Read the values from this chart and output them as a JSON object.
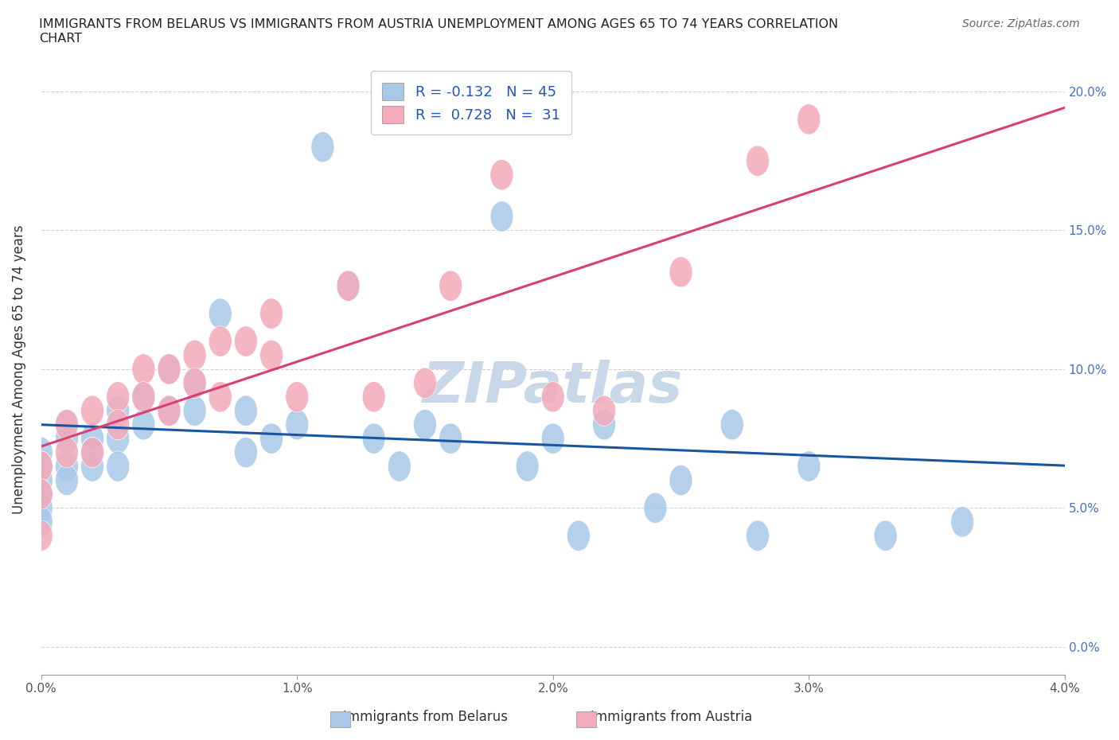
{
  "title": "IMMIGRANTS FROM BELARUS VS IMMIGRANTS FROM AUSTRIA UNEMPLOYMENT AMONG AGES 65 TO 74 YEARS CORRELATION\nCHART",
  "source": "Source: ZipAtlas.com",
  "ylabel": "Unemployment Among Ages 65 to 74 years",
  "legend_label_belarus": "Immigrants from Belarus",
  "legend_label_austria": "Immigrants from Austria",
  "R_belarus": -0.132,
  "N_belarus": 45,
  "R_austria": 0.728,
  "N_austria": 31,
  "color_belarus": "#A8C8E8",
  "color_austria": "#F4AABA",
  "line_color_belarus": "#1A56A0",
  "line_color_austria": "#D84070",
  "x_belarus": [
    0.0,
    0.0,
    0.0,
    0.0,
    0.0,
    0.0,
    0.001,
    0.001,
    0.001,
    0.001,
    0.002,
    0.002,
    0.002,
    0.003,
    0.003,
    0.003,
    0.004,
    0.004,
    0.005,
    0.005,
    0.006,
    0.006,
    0.007,
    0.008,
    0.008,
    0.009,
    0.01,
    0.011,
    0.012,
    0.013,
    0.014,
    0.015,
    0.016,
    0.018,
    0.019,
    0.02,
    0.021,
    0.022,
    0.024,
    0.025,
    0.027,
    0.028,
    0.03,
    0.033,
    0.036
  ],
  "y_belarus": [
    0.07,
    0.065,
    0.06,
    0.055,
    0.05,
    0.045,
    0.08,
    0.075,
    0.065,
    0.06,
    0.075,
    0.07,
    0.065,
    0.085,
    0.075,
    0.065,
    0.09,
    0.08,
    0.1,
    0.085,
    0.095,
    0.085,
    0.12,
    0.085,
    0.07,
    0.075,
    0.08,
    0.18,
    0.13,
    0.075,
    0.065,
    0.08,
    0.075,
    0.155,
    0.065,
    0.075,
    0.04,
    0.08,
    0.05,
    0.06,
    0.08,
    0.04,
    0.065,
    0.04,
    0.045
  ],
  "x_austria": [
    0.0,
    0.0,
    0.0,
    0.001,
    0.001,
    0.002,
    0.002,
    0.003,
    0.003,
    0.004,
    0.004,
    0.005,
    0.005,
    0.006,
    0.006,
    0.007,
    0.007,
    0.008,
    0.009,
    0.009,
    0.01,
    0.012,
    0.013,
    0.015,
    0.016,
    0.018,
    0.02,
    0.022,
    0.025,
    0.028,
    0.03
  ],
  "y_austria": [
    0.065,
    0.055,
    0.04,
    0.08,
    0.07,
    0.085,
    0.07,
    0.09,
    0.08,
    0.1,
    0.09,
    0.1,
    0.085,
    0.105,
    0.095,
    0.11,
    0.09,
    0.11,
    0.12,
    0.105,
    0.09,
    0.13,
    0.09,
    0.095,
    0.13,
    0.17,
    0.09,
    0.085,
    0.135,
    0.175,
    0.19
  ],
  "xlim": [
    0.0,
    0.04
  ],
  "ylim": [
    -0.01,
    0.21
  ],
  "xticks": [
    0.0,
    0.01,
    0.02,
    0.03,
    0.04
  ],
  "yticks_right": [
    0.0,
    0.05,
    0.1,
    0.15,
    0.2
  ],
  "background_color": "#FFFFFF",
  "watermark_text": "ZIPatlas",
  "watermark_color": "#C8D8E8"
}
